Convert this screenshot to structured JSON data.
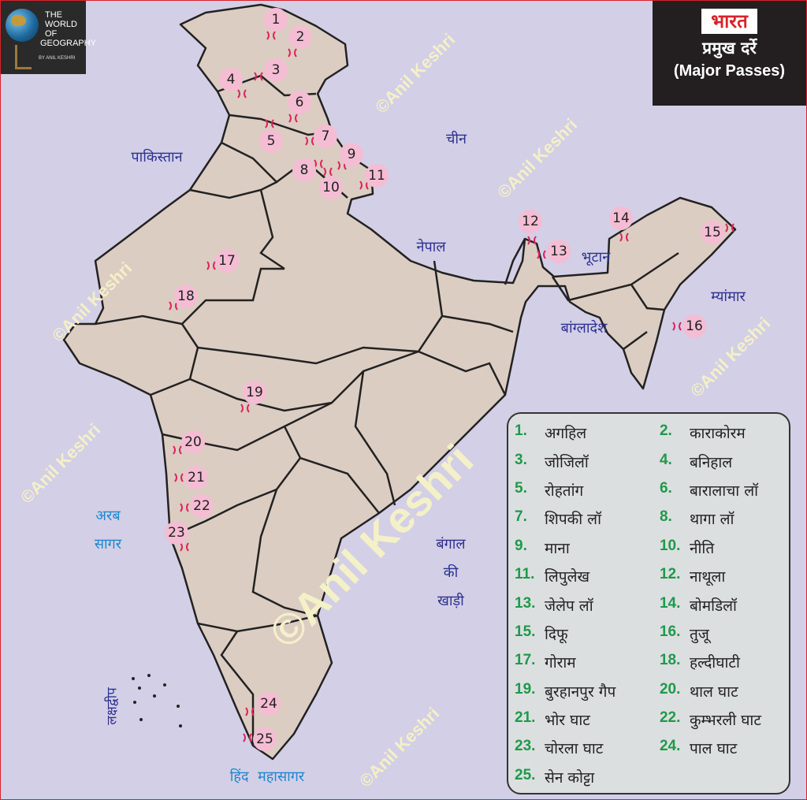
{
  "logo": {
    "line1": "THE",
    "line2": "WORLD",
    "line3": "OF",
    "line4": "GEOGRAPHY",
    "byline": "BY ANIL KESHRI"
  },
  "title": {
    "country": "भारत",
    "hindi": "प्रमुख दर्रे",
    "english": "(Major Passes)"
  },
  "watermark": "©Anil Keshri",
  "labels": {
    "china": "चीन",
    "pakistan": "पाकिस्तान",
    "nepal": "नेपाल",
    "bhutan": "भूटान",
    "myanmar": "म्यांमार",
    "bangladesh": "बांग्लादेश",
    "arabian_sea_1": "अरब",
    "arabian_sea_2": "सागर",
    "bay_1": "बंगाल",
    "bay_2": "की",
    "bay_3": "खाड़ी",
    "indian_ocean": "हिंद  महासागर",
    "lakshadweep": "लक्षद्वीप"
  },
  "colors": {
    "sea": "#d3cfe6",
    "land": "#dccdc3",
    "marker": "#f4bdd3",
    "pass_symbol": "#e0245e",
    "legend_number": "#1e9a4a",
    "title_accent": "#d8232a"
  },
  "passes": [
    {
      "num": "1",
      "name": "अगहिल"
    },
    {
      "num": "2",
      "name": "काराकोरम"
    },
    {
      "num": "3",
      "name": "जोजिलॉ"
    },
    {
      "num": "4",
      "name": "बनिहाल"
    },
    {
      "num": "5",
      "name": "रोहतांग"
    },
    {
      "num": "6",
      "name": "बारालाचा लॉ"
    },
    {
      "num": "7",
      "name": "शिपकी लॉ"
    },
    {
      "num": "8",
      "name": "थागा लॉ"
    },
    {
      "num": "9",
      "name": "माना"
    },
    {
      "num": "10",
      "name": "नीति"
    },
    {
      "num": "11",
      "name": "लिपुलेख"
    },
    {
      "num": "12",
      "name": "नाथूला"
    },
    {
      "num": "13",
      "name": "जेलेप लॉ"
    },
    {
      "num": "14",
      "name": "बोमडिलॉ"
    },
    {
      "num": "15",
      "name": "दिफू"
    },
    {
      "num": "16",
      "name": "तुजू"
    },
    {
      "num": "17",
      "name": "गोराम"
    },
    {
      "num": "18",
      "name": "हल्दीघाटी"
    },
    {
      "num": "19",
      "name": "बुरहानपुर गैप"
    },
    {
      "num": "20",
      "name": "थाल घाट"
    },
    {
      "num": "21",
      "name": "भोर घाट"
    },
    {
      "num": "22",
      "name": "कुम्भरली घाट"
    },
    {
      "num": "23",
      "name": "चोरला घाट"
    },
    {
      "num": "24",
      "name": "पाल घाट"
    },
    {
      "num": "25",
      "name": "सेन कोट्टा"
    }
  ]
}
